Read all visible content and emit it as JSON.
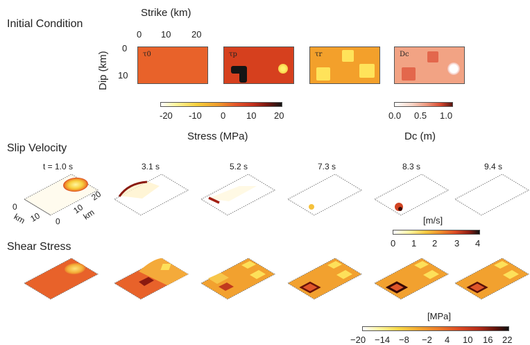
{
  "initial_condition": {
    "title": "Initial Condition",
    "strike_axis": {
      "label": "Strike (km)",
      "ticks": [
        "0",
        "10",
        "20"
      ]
    },
    "dip_axis": {
      "label": "Dip (km)",
      "ticks": [
        "0",
        "10"
      ]
    },
    "panels": [
      {
        "label": "τ0",
        "color": "#e8622a"
      },
      {
        "label": "τp",
        "color": "#d6401e"
      },
      {
        "label": "τr",
        "color": "#f3a02b"
      },
      {
        "label": "Dc",
        "color": "#f2a384"
      }
    ]
  },
  "stress_colorbar": {
    "label": "Stress (MPa)",
    "ticks": [
      "-20",
      "-10",
      "0",
      "10",
      "20"
    ]
  },
  "dc_colorbar": {
    "label": "Dc (m)",
    "ticks": [
      "0.0",
      "0.5",
      "1.0"
    ]
  },
  "slip_velocity": {
    "title": "Slip Velocity",
    "times": [
      "t = 1.0 s",
      "3.1 s",
      "5.2 s",
      "7.3 s",
      "8.3 s",
      "9.4 s"
    ],
    "axis_labels": {
      "strike_ticks": [
        "0",
        "10",
        "20"
      ],
      "dip_ticks": [
        "0",
        "10"
      ],
      "unit_a": "km",
      "unit_b": "km"
    },
    "colorbar": {
      "unit": "[m/s]",
      "ticks": [
        "0",
        "1",
        "2",
        "3",
        "4"
      ]
    }
  },
  "shear_stress": {
    "title": "Shear Stress",
    "colorbar": {
      "unit": "[MPa]",
      "ticks": [
        "−20",
        "−14",
        "−8",
        "−2",
        "4",
        "10",
        "16",
        "22"
      ]
    }
  }
}
